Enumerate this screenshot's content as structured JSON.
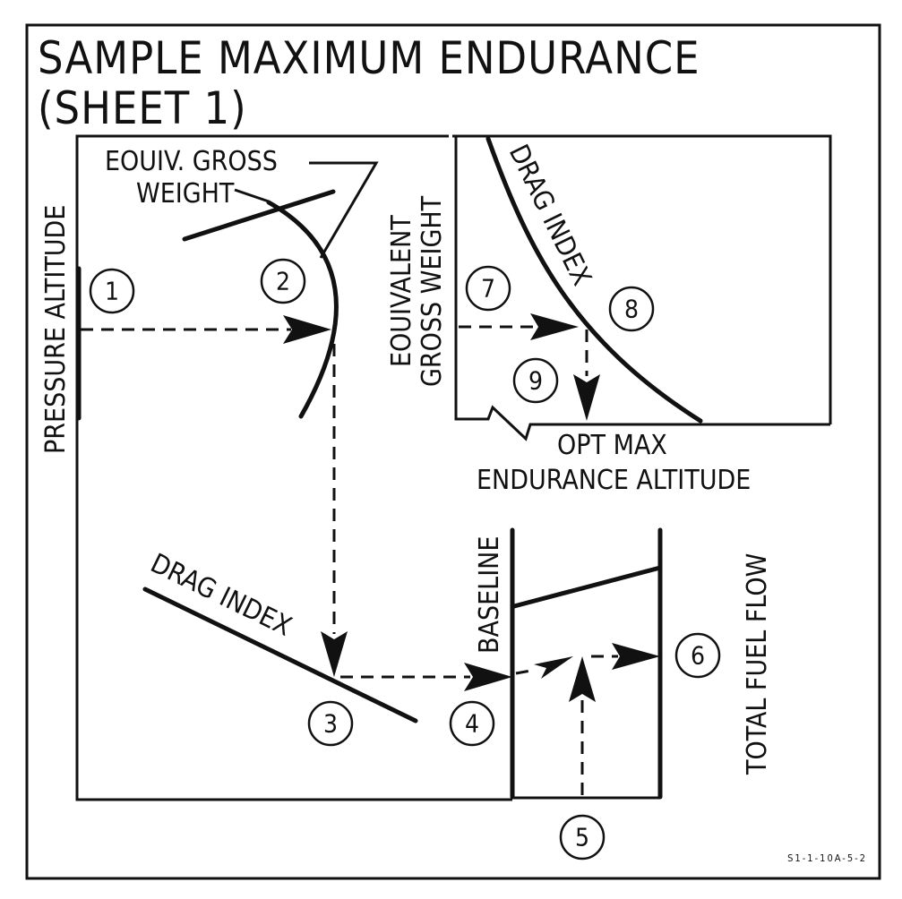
{
  "title_line1": "SAMPLE MAXIMUM ENDURANCE",
  "title_line2": "(SHEET 1)",
  "labels": {
    "pressure_altitude": "PRESSURE ALTITUDE",
    "equiv_gross_weight_line1": "EOUIV. GROSS",
    "equiv_gross_weight_line2": "WEIGHT",
    "drag_index_left": "DRAG INDEX",
    "equivalent_line1": "EOUIVALENT",
    "equivalent_line2": "GROSS WEIGHT",
    "drag_index_right": "DRAG INDEX",
    "opt_max_line1": "OPT MAX",
    "opt_max_line2": "ENDURANCE ALTITUDE",
    "baseline": "BASELINE",
    "total_fuel_flow": "TOTAL FUEL FLOW"
  },
  "steps": [
    "1",
    "2",
    "3",
    "4",
    "5",
    "6",
    "7",
    "8",
    "9"
  ],
  "figure_code": "S1-1-10A-5-2"
}
